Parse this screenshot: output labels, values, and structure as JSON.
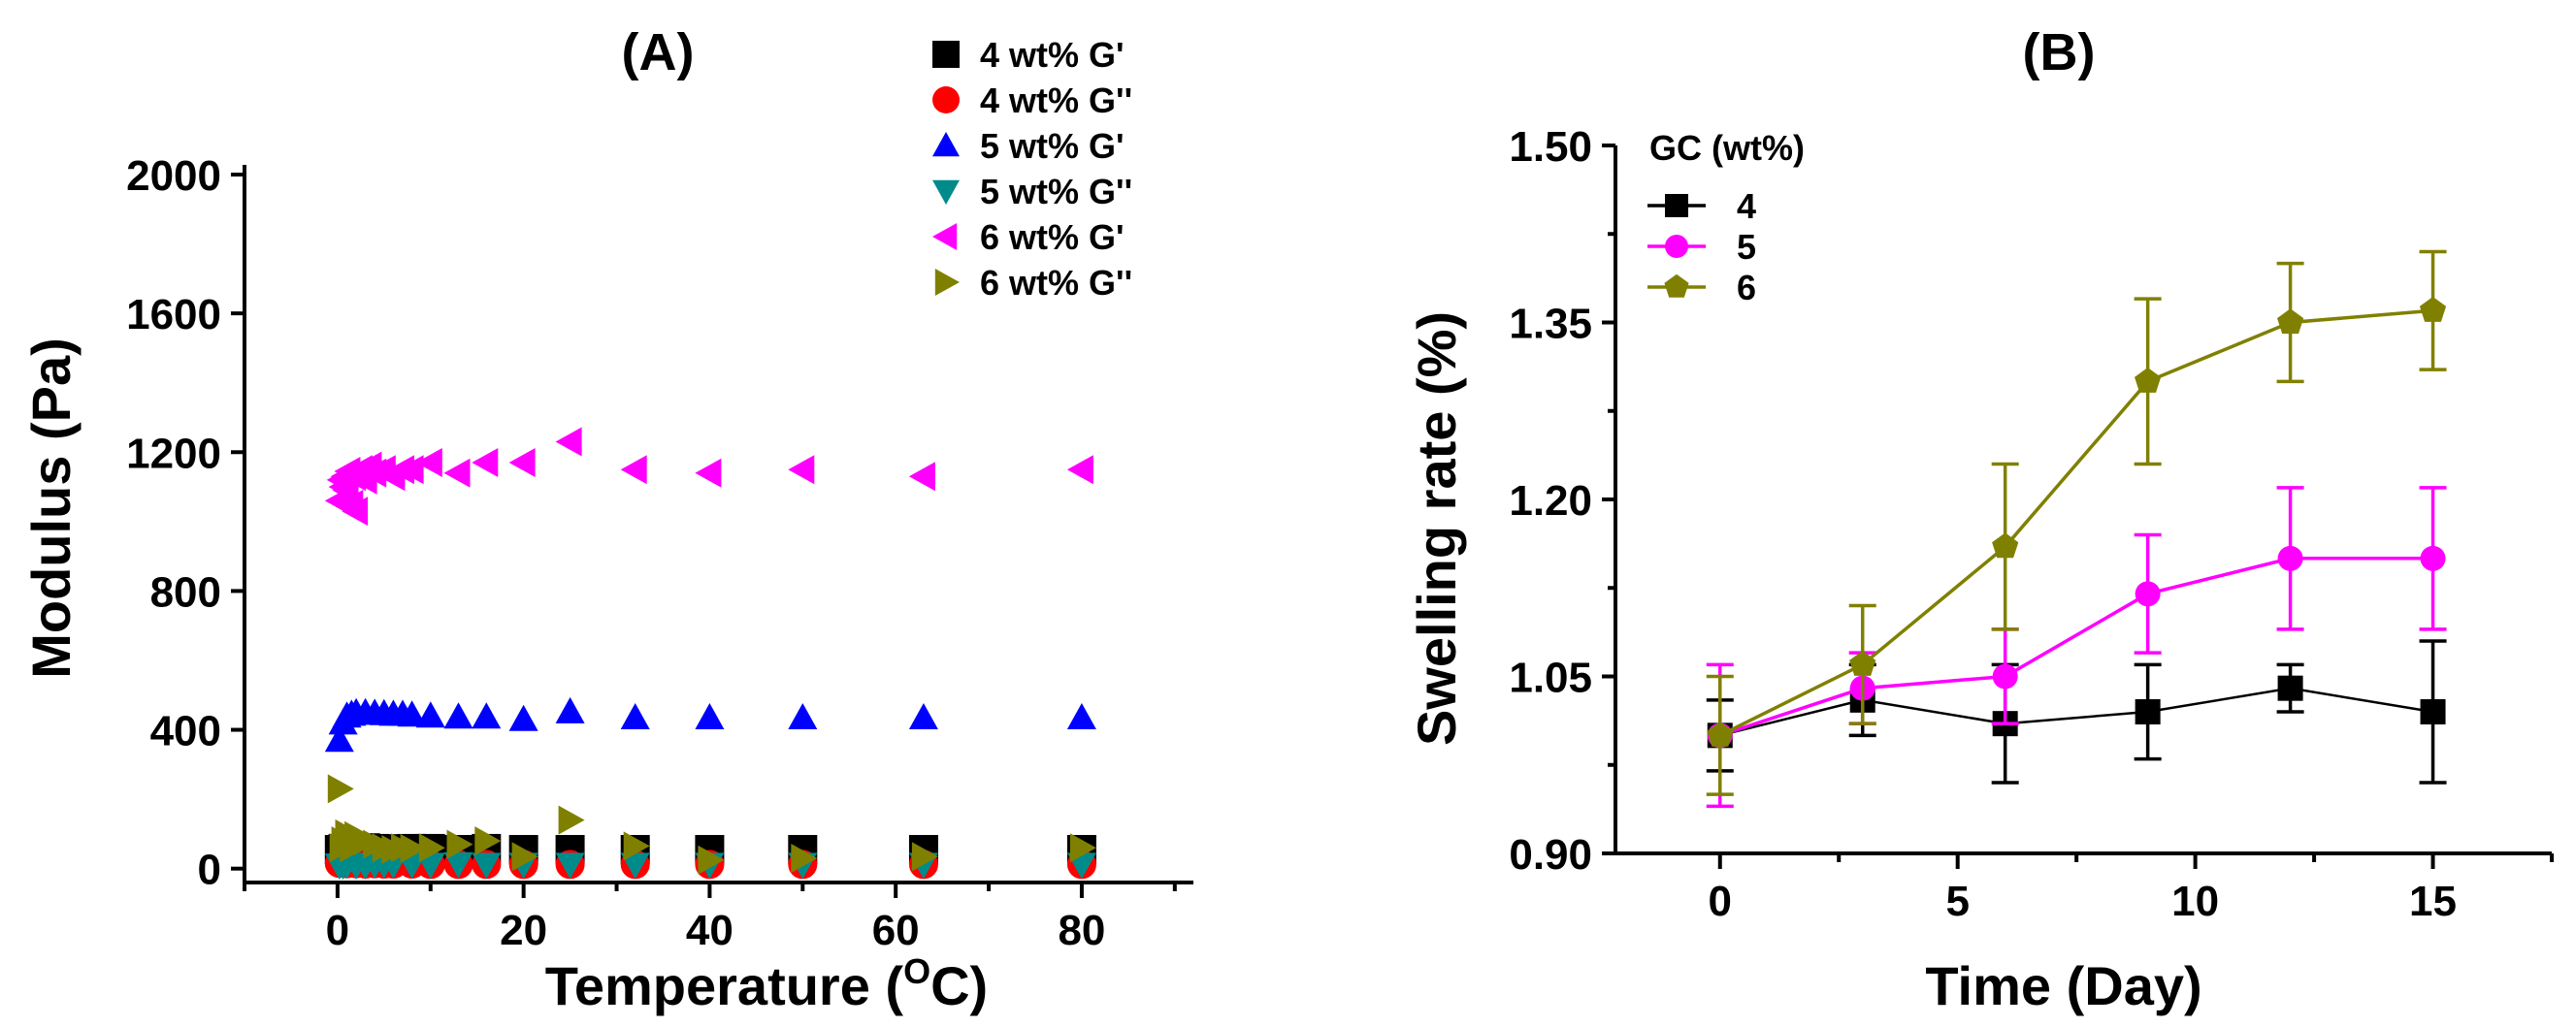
{
  "chart_data": [
    {
      "panel": "(A)",
      "type": "scatter",
      "title": "(A)",
      "xlabel": "Temperature (",
      "xlabel_sup": "O",
      "xlabel_suffix": "C)",
      "ylabel": "Modulus (Pa)",
      "xlim": [
        -10,
        92
      ],
      "ylim": [
        -40,
        2000
      ],
      "xticks": [
        0,
        20,
        40,
        60,
        80
      ],
      "yticks": [
        0,
        400,
        800,
        1200,
        1600,
        2000
      ],
      "legend_position": "top-right",
      "series": [
        {
          "name": "4 wt% G'",
          "marker": "square",
          "color": "#000000",
          "points": [
            [
              0.2,
              55
            ],
            [
              0.6,
              58
            ],
            [
              1,
              60
            ],
            [
              1.5,
              57
            ],
            [
              2,
              58
            ],
            [
              3,
              60
            ],
            [
              4,
              58
            ],
            [
              5,
              57
            ],
            [
              6,
              56
            ],
            [
              7,
              57
            ],
            [
              8,
              58
            ],
            [
              10,
              58
            ],
            [
              13,
              55
            ],
            [
              16,
              58
            ],
            [
              20,
              55
            ],
            [
              25,
              55
            ],
            [
              32,
              55
            ],
            [
              40,
              55
            ],
            [
              50,
              55
            ],
            [
              63,
              55
            ],
            [
              80,
              55
            ]
          ]
        },
        {
          "name": "4 wt% G''",
          "marker": "circle",
          "color": "#ff0000",
          "points": [
            [
              0.2,
              15
            ],
            [
              1,
              14
            ],
            [
              2,
              14
            ],
            [
              3,
              13
            ],
            [
              4,
              14
            ],
            [
              5,
              13
            ],
            [
              6,
              13
            ],
            [
              8,
              13
            ],
            [
              10,
              12
            ],
            [
              13,
              12
            ],
            [
              16,
              12
            ],
            [
              20,
              12
            ],
            [
              25,
              12
            ],
            [
              32,
              12
            ],
            [
              40,
              12
            ],
            [
              50,
              12
            ],
            [
              63,
              12
            ],
            [
              80,
              12
            ]
          ]
        },
        {
          "name": "5 wt% G'",
          "marker": "triangle-up",
          "color": "#0000ff",
          "points": [
            [
              0.2,
              370
            ],
            [
              0.6,
              420
            ],
            [
              1,
              440
            ],
            [
              1.5,
              445
            ],
            [
              2,
              450
            ],
            [
              3,
              450
            ],
            [
              4,
              448
            ],
            [
              5,
              447
            ],
            [
              6,
              445
            ],
            [
              7,
              445
            ],
            [
              8,
              443
            ],
            [
              10,
              440
            ],
            [
              13,
              437
            ],
            [
              16,
              437
            ],
            [
              20,
              430
            ],
            [
              25,
              452
            ],
            [
              32,
              435
            ],
            [
              40,
              435
            ],
            [
              50,
              435
            ],
            [
              63,
              435
            ],
            [
              80,
              435
            ]
          ]
        },
        {
          "name": "5 wt% G''",
          "marker": "triangle-down",
          "color": "#008b8b",
          "points": [
            [
              0.2,
              10
            ],
            [
              0.6,
              10
            ],
            [
              1,
              12
            ],
            [
              2,
              10
            ],
            [
              3,
              10
            ],
            [
              4,
              12
            ],
            [
              5,
              12
            ],
            [
              6,
              12
            ],
            [
              8,
              12
            ],
            [
              10,
              12
            ],
            [
              13,
              14
            ],
            [
              16,
              12
            ],
            [
              20,
              12
            ],
            [
              25,
              12
            ],
            [
              32,
              12
            ],
            [
              40,
              12
            ],
            [
              50,
              12
            ],
            [
              63,
              12
            ],
            [
              80,
              12
            ]
          ]
        },
        {
          "name": "6 wt% G'",
          "marker": "triangle-left",
          "color": "#ff00ff",
          "points": [
            [
              0.2,
              1060
            ],
            [
              0.4,
              1120
            ],
            [
              0.6,
              1100
            ],
            [
              0.8,
              1130
            ],
            [
              1,
              1090
            ],
            [
              1.2,
              1145
            ],
            [
              1.5,
              1050
            ],
            [
              1.8,
              1130
            ],
            [
              2,
              1030
            ],
            [
              2.5,
              1150
            ],
            [
              3,
              1120
            ],
            [
              3.5,
              1160
            ],
            [
              4,
              1140
            ],
            [
              5,
              1150
            ],
            [
              6,
              1130
            ],
            [
              7,
              1150
            ],
            [
              8,
              1150
            ],
            [
              10,
              1170
            ],
            [
              13,
              1140
            ],
            [
              16,
              1170
            ],
            [
              20,
              1170
            ],
            [
              25,
              1230
            ],
            [
              32,
              1150
            ],
            [
              40,
              1140
            ],
            [
              50,
              1150
            ],
            [
              63,
              1130
            ],
            [
              80,
              1150
            ]
          ]
        },
        {
          "name": "6 wt% G''",
          "marker": "triangle-right",
          "color": "#808000",
          "points": [
            [
              0.2,
              230
            ],
            [
              0.4,
              60
            ],
            [
              0.6,
              80
            ],
            [
              0.8,
              70
            ],
            [
              1,
              100
            ],
            [
              1.5,
              60
            ],
            [
              2,
              95
            ],
            [
              3,
              80
            ],
            [
              4,
              70
            ],
            [
              5,
              60
            ],
            [
              6,
              55
            ],
            [
              7,
              60
            ],
            [
              8,
              58
            ],
            [
              10,
              60
            ],
            [
              13,
              70
            ],
            [
              16,
              80
            ],
            [
              20,
              35
            ],
            [
              25,
              140
            ],
            [
              32,
              65
            ],
            [
              40,
              25
            ],
            [
              50,
              30
            ],
            [
              63,
              35
            ],
            [
              80,
              60
            ]
          ]
        }
      ]
    },
    {
      "panel": "(B)",
      "type": "line",
      "title": "(B)",
      "xlabel": "Time (Day)",
      "ylabel": "Swelling rate (%)",
      "xlim": [
        -2.2,
        17.5
      ],
      "ylim": [
        0.9,
        1.5
      ],
      "xticks": [
        0,
        5,
        10,
        15
      ],
      "yticks": [
        0.9,
        1.05,
        1.2,
        1.35,
        1.5
      ],
      "ytick_labels": [
        "0.90",
        "1.05",
        "1.20",
        "1.35",
        "1.50"
      ],
      "legend_title": "GC (wt%)",
      "legend_position": "top-left",
      "x": [
        0,
        3,
        6,
        9,
        12,
        15
      ],
      "series": [
        {
          "name": "4",
          "marker": "square",
          "color": "#000000",
          "values": [
            1.0,
            1.03,
            1.01,
            1.02,
            1.04,
            1.02
          ],
          "errors": [
            0.03,
            0.03,
            0.05,
            0.04,
            0.02,
            0.06
          ]
        },
        {
          "name": "5",
          "marker": "circle",
          "color": "#ff00ff",
          "values": [
            1.0,
            1.04,
            1.05,
            1.12,
            1.15,
            1.15
          ],
          "errors": [
            0.06,
            0.03,
            0.04,
            0.05,
            0.06,
            0.06
          ]
        },
        {
          "name": "6",
          "marker": "pentagon",
          "color": "#808000",
          "values": [
            1.0,
            1.06,
            1.16,
            1.3,
            1.35,
            1.36
          ],
          "errors": [
            0.05,
            0.05,
            0.07,
            0.07,
            0.05,
            0.05
          ]
        }
      ]
    }
  ]
}
